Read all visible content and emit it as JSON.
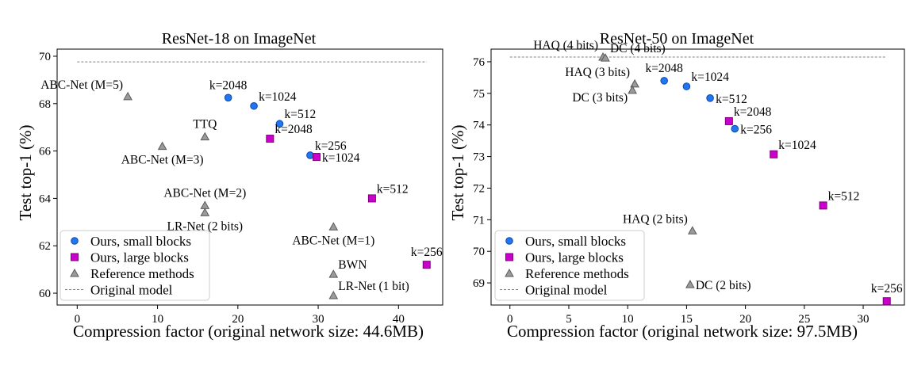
{
  "colors": {
    "ours_small_fill": "#1f77f4",
    "ours_small_edge": "#1045a8",
    "ours_large_fill": "#cc00cc",
    "ours_large_edge": "#7a007a",
    "reference_fill": "#9a9a9a",
    "reference_edge": "#5a5a5a",
    "original_line": "#808080"
  },
  "chart_data": [
    {
      "type": "scatter",
      "title": "ResNet-18 on ImageNet",
      "xlabel": "Compression factor (original network size: 44.6MB)",
      "ylabel": "Test top-1 (%)",
      "xlim": [
        -2.5,
        45.5
      ],
      "ylim": [
        59.5,
        70.3
      ],
      "xticks": [
        0,
        10,
        20,
        30,
        40
      ],
      "yticks": [
        60,
        62,
        64,
        66,
        68,
        70
      ],
      "grid": false,
      "legend_position": "lower-left",
      "legend": [
        "Ours, small blocks",
        "Ours, large blocks",
        "Reference methods",
        "Original model"
      ],
      "original_model": 69.76,
      "original_x_range": [
        0,
        43.5
      ],
      "series": [
        {
          "name": "Ours, small blocks",
          "marker": "circle",
          "points": [
            {
              "x": 18.8,
              "y": 68.25,
              "label": "k=2048",
              "anchor": "above"
            },
            {
              "x": 22.0,
              "y": 67.9,
              "label": "k=1024",
              "anchor": "right-up"
            },
            {
              "x": 25.2,
              "y": 67.15,
              "label": "k=512",
              "anchor": "right-up"
            },
            {
              "x": 29.0,
              "y": 65.82,
              "label": "k=256",
              "anchor": "right-up"
            }
          ]
        },
        {
          "name": "Ours, large blocks",
          "marker": "square",
          "points": [
            {
              "x": 24.0,
              "y": 66.52,
              "label": "k=2048",
              "anchor": "right-up"
            },
            {
              "x": 29.8,
              "y": 65.75,
              "label": "k=1024",
              "anchor": "right"
            },
            {
              "x": 36.7,
              "y": 64.0,
              "label": "k=512",
              "anchor": "right-up"
            },
            {
              "x": 43.5,
              "y": 61.2,
              "label": "k=256",
              "anchor": "above"
            }
          ]
        },
        {
          "name": "Reference methods",
          "marker": "triangle",
          "points": [
            {
              "x": 6.3,
              "y": 68.3,
              "label": "ABC-Net (M=5)",
              "anchor": "left-up"
            },
            {
              "x": 10.6,
              "y": 66.2,
              "label": "ABC-Net (M=3)",
              "anchor": "below"
            },
            {
              "x": 15.9,
              "y": 66.6,
              "label": "TTQ",
              "anchor": "above"
            },
            {
              "x": 15.9,
              "y": 63.7,
              "label": "ABC-Net (M=2)",
              "anchor": "above"
            },
            {
              "x": 15.9,
              "y": 63.4,
              "label": "LR-Net (2 bits)",
              "anchor": "below"
            },
            {
              "x": 31.9,
              "y": 62.8,
              "label": "ABC-Net (M=1)",
              "anchor": "below"
            },
            {
              "x": 31.9,
              "y": 60.8,
              "label": "BWN",
              "anchor": "right-up"
            },
            {
              "x": 31.9,
              "y": 59.9,
              "label": "LR-Net (1 bit)",
              "anchor": "right-up"
            }
          ]
        }
      ]
    },
    {
      "type": "scatter",
      "title": "ResNet-50 on ImageNet",
      "xlabel": "Compression factor (original network size: 97.5MB)",
      "ylabel": "Test top-1 (%)",
      "xlim": [
        -1.6,
        33.5
      ],
      "ylim": [
        68.3,
        76.4
      ],
      "xticks": [
        0,
        5,
        10,
        15,
        20,
        25,
        30
      ],
      "yticks": [
        69,
        70,
        71,
        72,
        73,
        74,
        75,
        76
      ],
      "grid": false,
      "legend_position": "lower-left",
      "legend": [
        "Ours, small blocks",
        "Ours, large blocks",
        "Reference methods",
        "Original model"
      ],
      "original_model": 76.15,
      "original_x_range": [
        0,
        32
      ],
      "series": [
        {
          "name": "Ours, small blocks",
          "marker": "circle",
          "points": [
            {
              "x": 13.1,
              "y": 75.4,
              "label": "k=2048",
              "anchor": "above"
            },
            {
              "x": 15.0,
              "y": 75.22,
              "label": "k=1024",
              "anchor": "right-up"
            },
            {
              "x": 17.0,
              "y": 74.85,
              "label": "k=512",
              "anchor": "right"
            },
            {
              "x": 19.1,
              "y": 73.88,
              "label": "k=256",
              "anchor": "right"
            }
          ]
        },
        {
          "name": "Ours, large blocks",
          "marker": "square",
          "points": [
            {
              "x": 18.6,
              "y": 74.12,
              "label": "k=2048",
              "anchor": "right-up"
            },
            {
              "x": 22.4,
              "y": 73.07,
              "label": "k=1024",
              "anchor": "right-up"
            },
            {
              "x": 26.6,
              "y": 71.45,
              "label": "k=512",
              "anchor": "right-up"
            },
            {
              "x": 32.0,
              "y": 68.42,
              "label": "k=256",
              "anchor": "above"
            }
          ]
        },
        {
          "name": "Reference methods",
          "marker": "triangle",
          "points": [
            {
              "x": 7.9,
              "y": 76.15,
              "label": "HAQ (4 bits)",
              "anchor": "left-up"
            },
            {
              "x": 8.1,
              "y": 76.12,
              "label": "DC (4 bits)",
              "anchor": "right-up"
            },
            {
              "x": 10.6,
              "y": 75.3,
              "label": "HAQ (3 bits)",
              "anchor": "left-up"
            },
            {
              "x": 10.4,
              "y": 75.1,
              "label": "DC (3 bits)",
              "anchor": "left-down"
            },
            {
              "x": 15.5,
              "y": 70.65,
              "label": "HAQ (2 bits)",
              "anchor": "left-up"
            },
            {
              "x": 15.3,
              "y": 68.95,
              "label": "DC (2 bits)",
              "anchor": "right"
            }
          ]
        }
      ]
    }
  ]
}
